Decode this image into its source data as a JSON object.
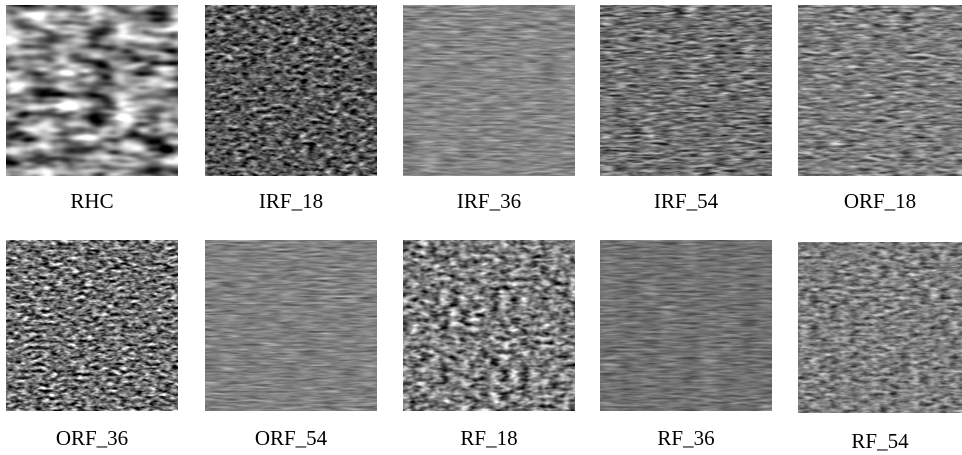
{
  "figure": {
    "panels": [
      {
        "label": "RHC"
      },
      {
        "label": "IRF_18"
      },
      {
        "label": "IRF_36"
      },
      {
        "label": "IRF_54"
      },
      {
        "label": "ORF_18"
      },
      {
        "label": "ORF_36"
      },
      {
        "label": "ORF_54"
      },
      {
        "label": "RF_18"
      },
      {
        "label": "RF_36"
      },
      {
        "label": "RF_54"
      }
    ]
  }
}
